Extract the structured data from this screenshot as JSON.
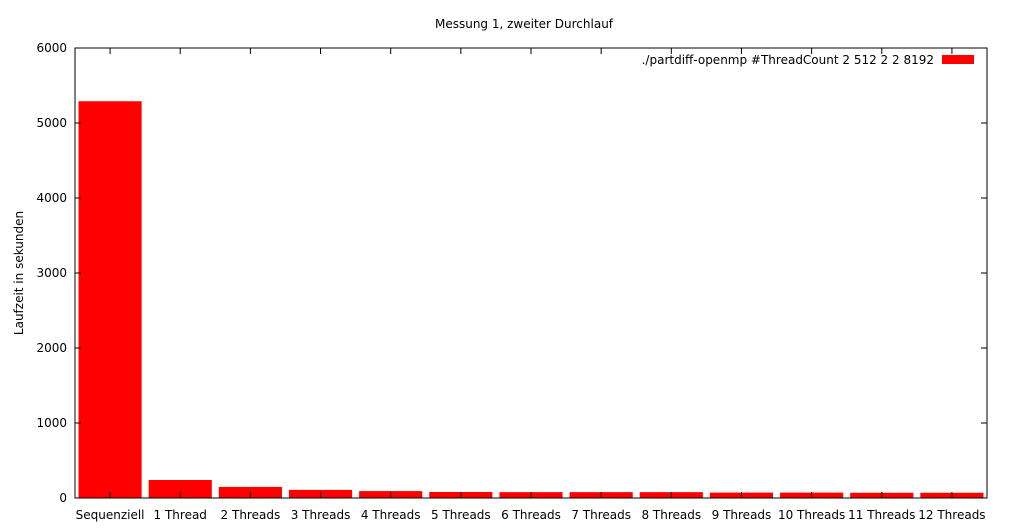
{
  "chart_data": {
    "type": "bar",
    "title": "Messung 1, zweiter Durchlauf",
    "xlabel": "",
    "ylabel": "Laufzeit in sekunden",
    "categories": [
      "Sequenziell",
      "1 Thread",
      "2 Threads",
      "3 Threads",
      "4 Threads",
      "5 Threads",
      "6 Threads",
      "7 Threads",
      "8 Threads",
      "9 Threads",
      "10 Threads",
      "11 Threads",
      "12 Threads"
    ],
    "series": [
      {
        "name": "./partdiff-openmp #ThreadCount 2 512 2 2 8192",
        "color": "#ff0000",
        "values": [
          5290,
          240,
          148,
          108,
          92,
          80,
          78,
          78,
          78,
          72,
          72,
          70,
          70
        ]
      }
    ],
    "ylim": [
      0,
      6000
    ],
    "yticks": [
      0,
      1000,
      2000,
      3000,
      4000,
      5000,
      6000
    ],
    "grid": false,
    "legend_position": "top-right"
  }
}
